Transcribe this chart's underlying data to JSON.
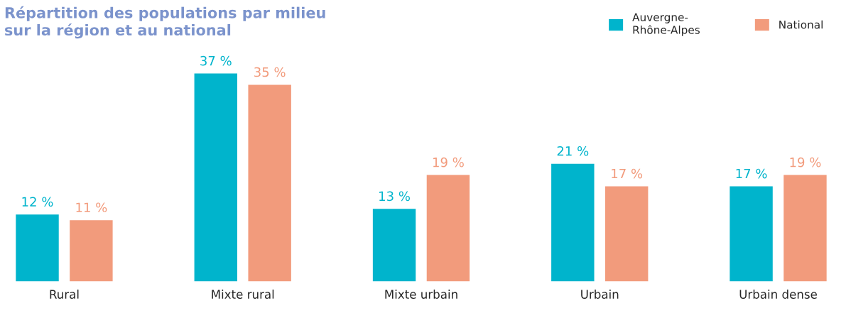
{
  "chart_data": {
    "type": "bar",
    "title": "Répartition des populations par milieu\nsur la région et au national",
    "categories": [
      "Rural",
      "Mixte rural",
      "Mixte urbain",
      "Urbain",
      "Urbain dense"
    ],
    "series": [
      {
        "name": "Auvergne-\nRhône-Alpes",
        "color": "#00b4cc",
        "values": [
          12,
          37,
          13,
          21,
          17
        ],
        "value_labels": [
          "12 %",
          "37 %",
          "13 %",
          "21 %",
          "17 %"
        ]
      },
      {
        "name": "National",
        "color": "#f29b7c",
        "values": [
          11,
          35,
          19,
          17,
          19
        ],
        "value_labels": [
          "11 %",
          "35 %",
          "19 %",
          "17 %",
          "19 %"
        ]
      }
    ],
    "legend": "top right",
    "grid": false
  }
}
